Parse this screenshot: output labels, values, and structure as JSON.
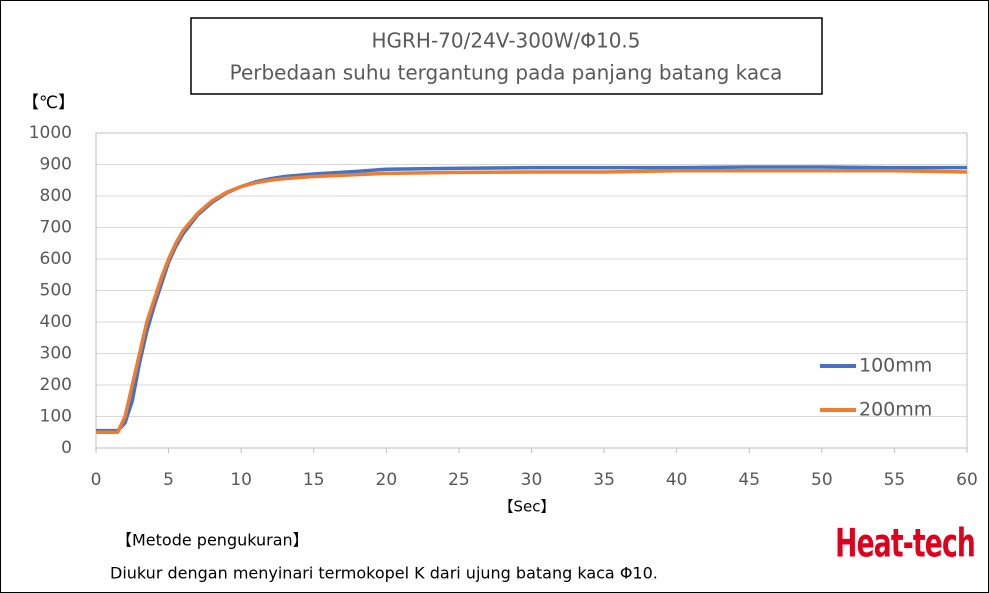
{
  "chart_data": {
    "type": "line",
    "title": "HGRH-70/24V-300W/Φ10.5",
    "subtitle": "Perbedaan suhu tergantung pada panjang batang kaca",
    "y_label": "【℃】",
    "x_label": "【Sec】",
    "x": [
      0,
      1.5,
      2,
      2.5,
      3,
      3.5,
      4,
      4.5,
      5,
      5.5,
      6,
      7,
      8,
      9,
      10,
      11,
      12,
      13,
      15,
      18,
      20,
      25,
      30,
      35,
      40,
      45,
      50,
      55,
      60
    ],
    "series": [
      {
        "name": "100mm",
        "color": "#4472c4",
        "values": [
          55,
          55,
          80,
          150,
          270,
          370,
          450,
          520,
          590,
          640,
          680,
          740,
          780,
          810,
          830,
          845,
          855,
          862,
          870,
          878,
          885,
          888,
          890,
          890,
          890,
          892,
          892,
          890,
          890
        ]
      },
      {
        "name": "200mm",
        "color": "#ed7d31",
        "values": [
          50,
          50,
          100,
          200,
          300,
          400,
          470,
          540,
          600,
          650,
          690,
          745,
          785,
          812,
          830,
          842,
          850,
          855,
          862,
          868,
          872,
          875,
          876,
          876,
          880,
          880,
          880,
          880,
          876
        ]
      }
    ],
    "xlim": [
      0,
      60
    ],
    "xticks": [
      0,
      5,
      10,
      15,
      20,
      25,
      30,
      35,
      40,
      45,
      50,
      55,
      60
    ],
    "ylim": [
      0,
      1000
    ],
    "yticks": [
      0,
      100,
      200,
      300,
      400,
      500,
      600,
      700,
      800,
      900,
      1000
    ],
    "grid": true,
    "legend": "right",
    "notes_title": "【Metode pengukuran】",
    "notes": "Diukur dengan menyinari termokopel K dari ujung batang kaca Φ10.",
    "brand": "Heat-tech"
  }
}
